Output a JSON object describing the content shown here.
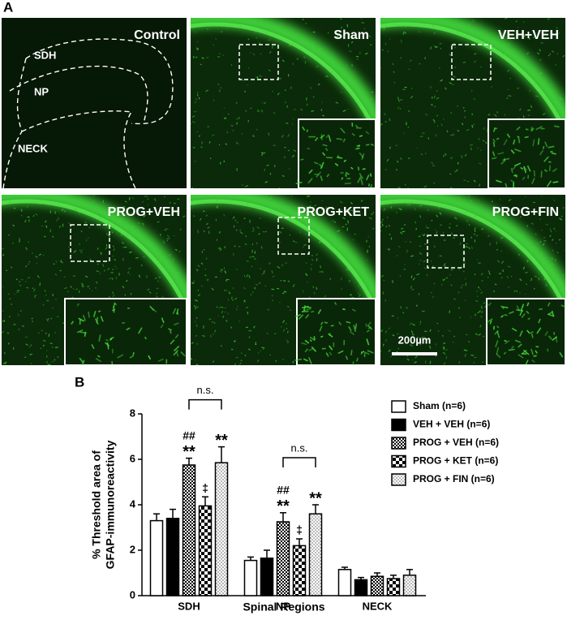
{
  "figure": {
    "panel_a": {
      "label": "A",
      "panels": [
        {
          "title": "Control",
          "regions": [
            "SDH",
            "NP",
            "NECK"
          ]
        },
        {
          "title": "Sham"
        },
        {
          "title": "VEH+VEH"
        },
        {
          "title": "PROG+VEH"
        },
        {
          "title": "PROG+KET"
        },
        {
          "title": "PROG+FIN"
        }
      ],
      "scale_bar": "200µm"
    },
    "panel_b": {
      "label": "B"
    }
  },
  "chart_data": {
    "type": "bar",
    "ylabel": [
      "% Threshold area of",
      "GFAP-immunoreactivity"
    ],
    "xlabel": "Spinal Regions",
    "categories": [
      "SDH",
      "NP",
      "NECK"
    ],
    "ylim": [
      0,
      8
    ],
    "yticks": [
      0,
      2,
      4,
      6,
      8
    ],
    "series": [
      {
        "name": "Sham (n=6)",
        "color": "#ffffff",
        "pattern": "solid",
        "values": [
          3.3,
          1.55,
          1.15
        ],
        "errors": [
          0.3,
          0.15,
          0.1
        ]
      },
      {
        "name": "VEH + VEH (n=6)",
        "color": "#000000",
        "pattern": "solid",
        "values": [
          3.4,
          1.65,
          0.7
        ],
        "errors": [
          0.4,
          0.35,
          0.1
        ]
      },
      {
        "name": "PROG + VEH (n=6)",
        "color": "#000000",
        "pattern": "fine-checker",
        "values": [
          5.75,
          3.25,
          0.85
        ],
        "errors": [
          0.3,
          0.4,
          0.15
        ]
      },
      {
        "name": "PROG + KET (n=6)",
        "color": "#000000",
        "pattern": "checker",
        "values": [
          3.95,
          2.2,
          0.75
        ],
        "errors": [
          0.4,
          0.3,
          0.15
        ]
      },
      {
        "name": "PROG + FIN (n=6)",
        "color": "#888888",
        "pattern": "dots",
        "values": [
          5.85,
          3.6,
          0.9
        ],
        "errors": [
          0.7,
          0.4,
          0.25
        ]
      }
    ],
    "annotations": [
      {
        "category": 0,
        "series": 2,
        "text": [
          "##",
          "**"
        ]
      },
      {
        "category": 0,
        "series": 3,
        "text": [
          "‡"
        ]
      },
      {
        "category": 0,
        "series": 4,
        "text": [
          "**"
        ]
      },
      {
        "category": 1,
        "series": 2,
        "text": [
          "##",
          "**"
        ]
      },
      {
        "category": 1,
        "series": 3,
        "text": [
          "‡"
        ]
      },
      {
        "category": 1,
        "series": 4,
        "text": [
          "**"
        ]
      }
    ],
    "brackets": [
      {
        "text": "n.s.",
        "category": 0,
        "from": 2,
        "to": 4
      },
      {
        "text": "n.s.",
        "category": 1,
        "from": 2,
        "to": 4
      }
    ]
  }
}
